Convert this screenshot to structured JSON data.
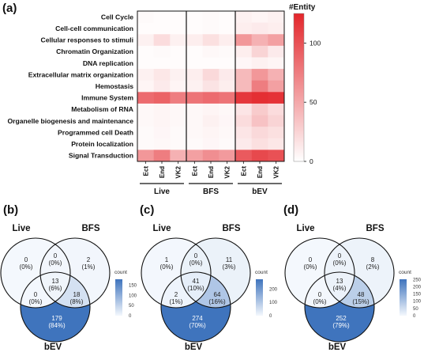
{
  "chart_data": [
    {
      "type": "heatmap",
      "panel_label": "(a)",
      "rows": [
        "Cell Cycle",
        "Cell-cell communication",
        "Cellular responses to stimuli",
        "Chromatin Organization",
        "DNA replication",
        "Extracellular matrix organization",
        "Hemostasis",
        "Immune System",
        "Metabolism of RNA",
        "Organelle biogenesis and maintenance",
        "Programmed cell Death",
        "Protein localization",
        "Signal Transduction"
      ],
      "columns": [
        "Ect",
        "End",
        "VK2",
        "Ect",
        "End",
        "VK2",
        "Ect",
        "End",
        "VK2"
      ],
      "groups": [
        {
          "name": "Live",
          "columns": [
            0,
            1,
            2
          ]
        },
        {
          "name": "BFS",
          "columns": [
            3,
            4,
            5
          ]
        },
        {
          "name": "bEV",
          "columns": [
            6,
            7,
            8
          ]
        }
      ],
      "values": [
        [
          3,
          2,
          2,
          2,
          3,
          2,
          8,
          6,
          8
        ],
        [
          2,
          2,
          2,
          2,
          3,
          2,
          10,
          12,
          10
        ],
        [
          8,
          20,
          8,
          10,
          18,
          10,
          60,
          45,
          55
        ],
        [
          2,
          3,
          2,
          2,
          4,
          3,
          10,
          25,
          12
        ],
        [
          2,
          2,
          2,
          2,
          2,
          2,
          5,
          8,
          6
        ],
        [
          8,
          14,
          8,
          10,
          22,
          12,
          40,
          60,
          45
        ],
        [
          6,
          12,
          6,
          8,
          16,
          10,
          40,
          75,
          55
        ],
        [
          85,
          90,
          75,
          80,
          85,
          80,
          115,
          120,
          118
        ],
        [
          4,
          6,
          4,
          4,
          6,
          4,
          15,
          30,
          20
        ],
        [
          4,
          6,
          4,
          4,
          8,
          5,
          20,
          35,
          25
        ],
        [
          3,
          5,
          3,
          4,
          6,
          4,
          15,
          22,
          18
        ],
        [
          3,
          4,
          3,
          3,
          5,
          3,
          12,
          18,
          14
        ],
        [
          60,
          75,
          45,
          55,
          65,
          58,
          95,
          105,
          100
        ]
      ],
      "colorbar": {
        "title": "#Entity",
        "ticks": [
          0,
          50,
          100
        ],
        "range": [
          0,
          125
        ],
        "color_low": "#ffffff",
        "color_high": "#e3262b"
      }
    },
    {
      "type": "venn",
      "panel_label": "(b)",
      "sets": [
        "Live",
        "BFS",
        "bEV"
      ],
      "regions": {
        "live_only": {
          "count": "0",
          "pct": "(0%)"
        },
        "bfs_only": {
          "count": "2",
          "pct": "(1%)"
        },
        "bev_only": {
          "count": "179",
          "pct": "(84%)"
        },
        "live_bfs": {
          "count": "0",
          "pct": "(0%)"
        },
        "live_bev": {
          "count": "0",
          "pct": "(0%)"
        },
        "bfs_bev": {
          "count": "18",
          "pct": "(8%)"
        },
        "all": {
          "count": "13",
          "pct": "(6%)"
        }
      },
      "legend": {
        "title": "count",
        "max": 179,
        "ticks": [
          0,
          50,
          100,
          150
        ]
      }
    },
    {
      "type": "venn",
      "panel_label": "(c)",
      "sets": [
        "Live",
        "BFS",
        "bEV"
      ],
      "regions": {
        "live_only": {
          "count": "1",
          "pct": "(0%)"
        },
        "bfs_only": {
          "count": "11",
          "pct": "(3%)"
        },
        "bev_only": {
          "count": "274",
          "pct": "(70%)"
        },
        "live_bfs": {
          "count": "0",
          "pct": "(0%)"
        },
        "live_bev": {
          "count": "2",
          "pct": "(1%)"
        },
        "bfs_bev": {
          "count": "64",
          "pct": "(16%)"
        },
        "all": {
          "count": "41",
          "pct": "(10%)"
        }
      },
      "legend": {
        "title": "count",
        "max": 274,
        "ticks": [
          0,
          100,
          200
        ]
      }
    },
    {
      "type": "venn",
      "panel_label": "(d)",
      "sets": [
        "Live",
        "BFS",
        "bEV"
      ],
      "regions": {
        "live_only": {
          "count": "0",
          "pct": "(0%)"
        },
        "bfs_only": {
          "count": "8",
          "pct": "(2%)"
        },
        "bev_only": {
          "count": "252",
          "pct": "(79%)"
        },
        "live_bfs": {
          "count": "0",
          "pct": "(0%)"
        },
        "live_bev": {
          "count": "0",
          "pct": "(0%)"
        },
        "bfs_bev": {
          "count": "48",
          "pct": "(15%)"
        },
        "all": {
          "count": "13",
          "pct": "(4%)"
        }
      },
      "legend": {
        "title": "count",
        "max": 252,
        "ticks": [
          0,
          50,
          100,
          150,
          200,
          250
        ]
      }
    }
  ]
}
